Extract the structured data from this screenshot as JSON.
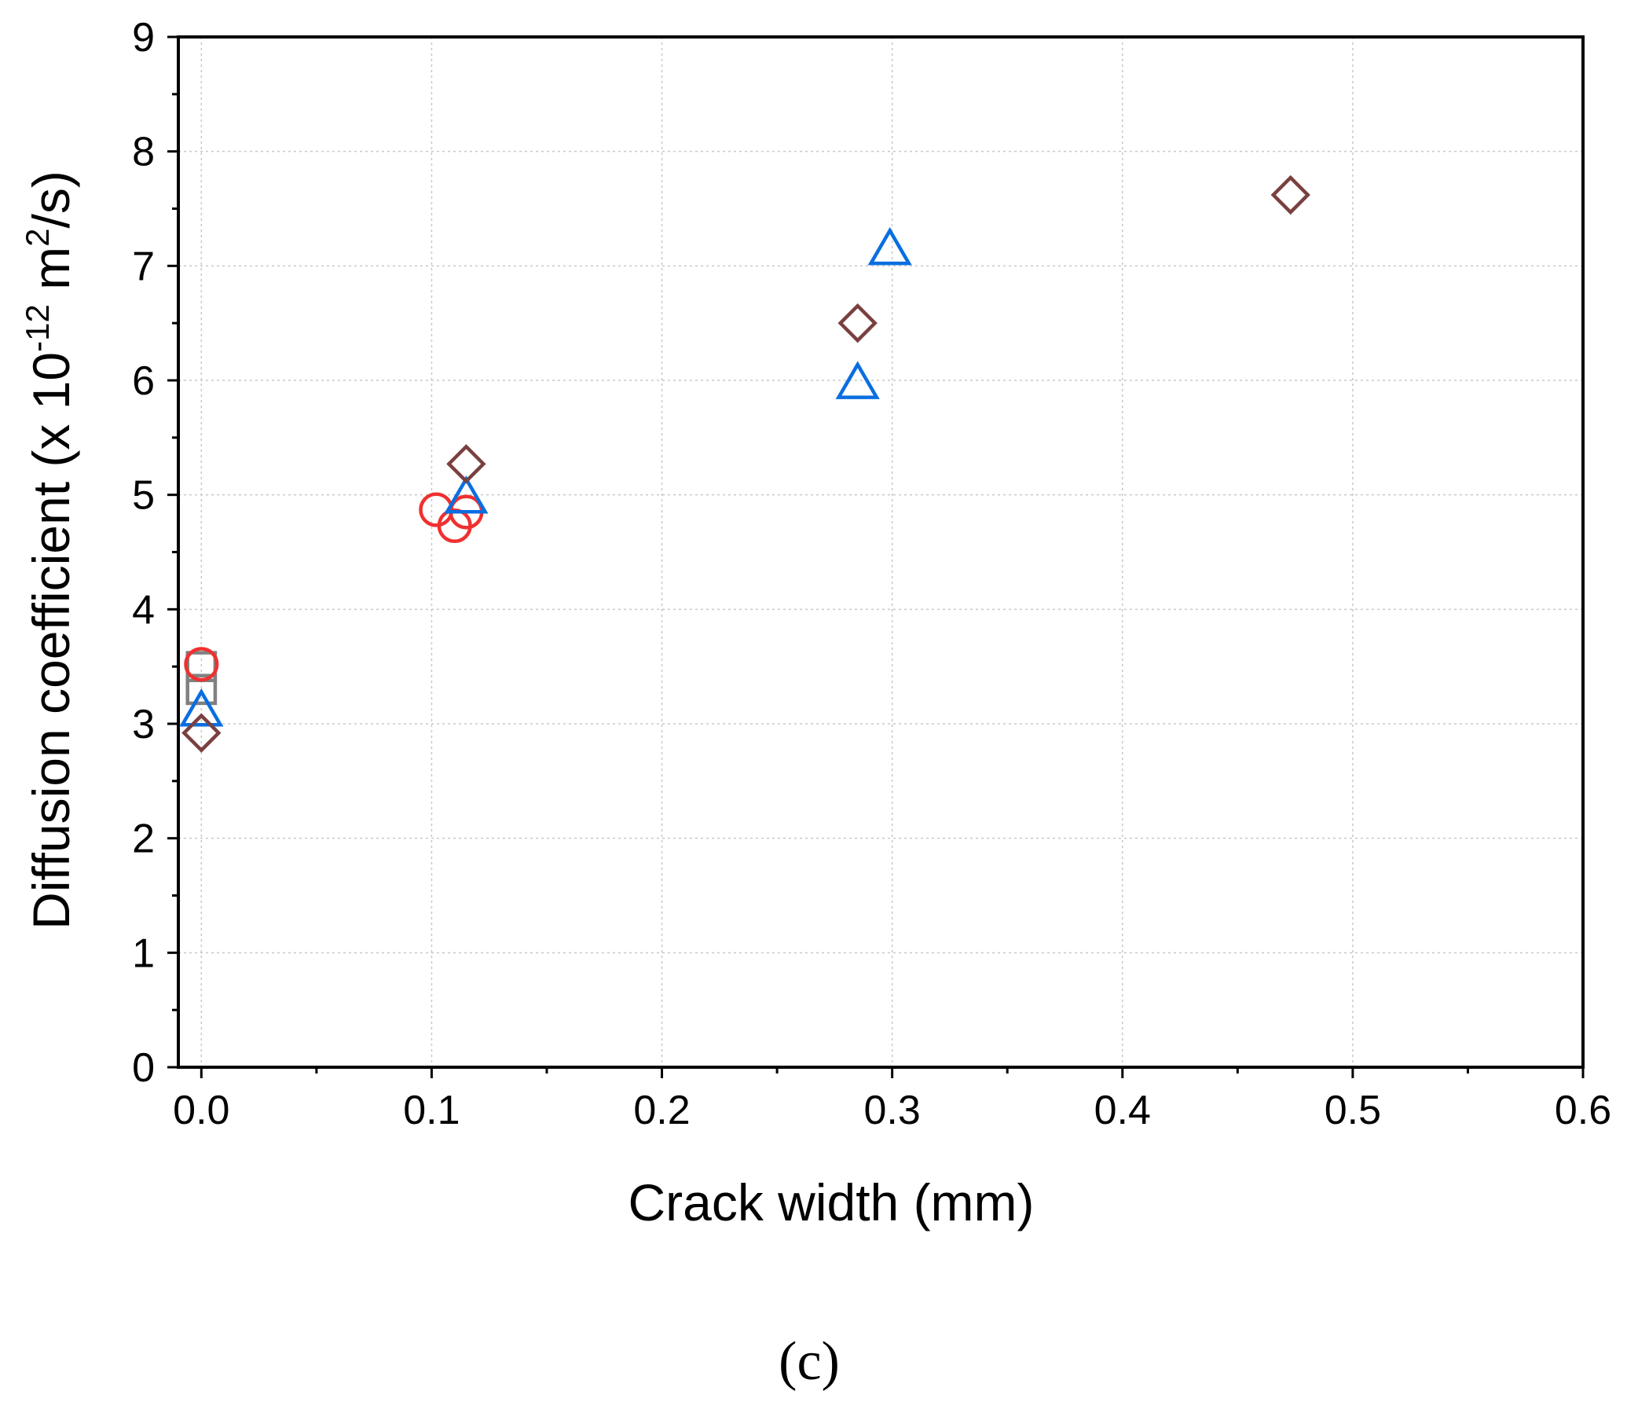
{
  "chart_data": {
    "type": "scatter",
    "title": "",
    "xlabel": "Crack width (mm)",
    "ylabel": {
      "prefix": "Diffusion coefficient (x 10",
      "exp1": "-12",
      "mid": " m",
      "exp2": "2",
      "suffix": "/s)"
    },
    "xlim": [
      -0.01,
      0.6
    ],
    "ylim": [
      0,
      9
    ],
    "xticks": [
      0.0,
      0.1,
      0.2,
      0.3,
      0.4,
      0.5,
      0.6
    ],
    "xtick_labels": [
      "0.0",
      "0.1",
      "0.2",
      "0.3",
      "0.4",
      "0.5",
      "0.6"
    ],
    "yticks": [
      0,
      1,
      2,
      3,
      4,
      5,
      6,
      7,
      8,
      9
    ],
    "ytick_labels": [
      "0",
      "1",
      "2",
      "3",
      "4",
      "5",
      "6",
      "7",
      "8",
      "9"
    ],
    "grid": true,
    "legend": "none",
    "series": [
      {
        "name": "square",
        "marker": "square",
        "color": "#808080",
        "points": [
          [
            0.0,
            3.5
          ],
          [
            0.0,
            3.3
          ]
        ]
      },
      {
        "name": "circle",
        "marker": "circle",
        "color": "#f03030",
        "points": [
          [
            0.0,
            3.52
          ],
          [
            0.102,
            4.87
          ],
          [
            0.11,
            4.73
          ],
          [
            0.115,
            4.85
          ]
        ]
      },
      {
        "name": "triangle",
        "marker": "triangle",
        "color": "#0a6ee0",
        "points": [
          [
            0.0,
            3.12
          ],
          [
            0.115,
            4.98
          ],
          [
            0.285,
            5.98
          ],
          [
            0.299,
            7.15
          ]
        ]
      },
      {
        "name": "diamond",
        "marker": "diamond",
        "color": "#7a4040",
        "points": [
          [
            0.0,
            2.92
          ],
          [
            0.115,
            5.27
          ],
          [
            0.285,
            6.5
          ],
          [
            0.473,
            7.62
          ]
        ]
      }
    ]
  },
  "panel_label": "(c)"
}
